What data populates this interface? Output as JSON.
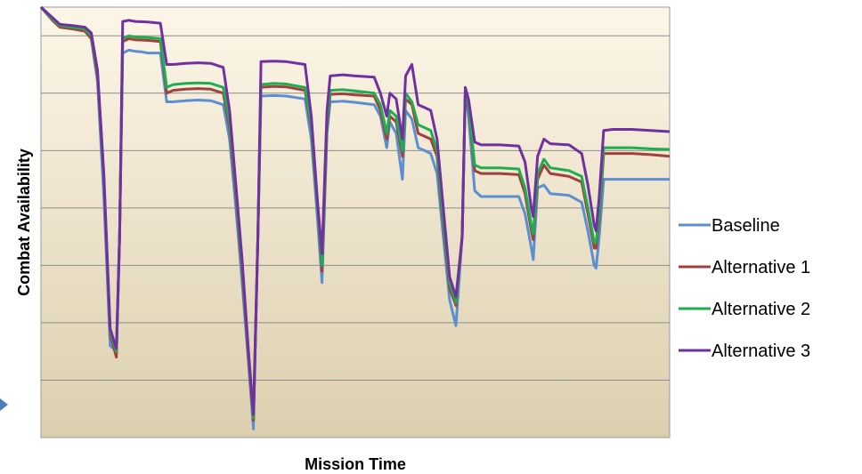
{
  "chart_data": {
    "type": "line",
    "title": "",
    "xlabel": "Mission Time",
    "ylabel": "Combat Availability",
    "xlim": [
      0,
      100
    ],
    "ylim": [
      0,
      7.5
    ],
    "grid": true,
    "legend_position": "right",
    "tick_labels_shown": false,
    "series": [
      {
        "name": "Baseline",
        "color": "#5B8FD0",
        "points": [
          [
            0,
            7.5
          ],
          [
            2,
            7.25
          ],
          [
            3,
            7.17
          ],
          [
            5,
            7.13
          ],
          [
            7,
            7.1
          ],
          [
            8,
            6.95
          ],
          [
            9,
            6.2
          ],
          [
            10,
            4.2
          ],
          [
            11,
            1.6
          ],
          [
            12,
            1.5
          ],
          [
            12.5,
            3.5
          ],
          [
            13,
            6.7
          ],
          [
            14,
            6.75
          ],
          [
            15,
            6.73
          ],
          [
            16,
            6.72
          ],
          [
            17,
            6.7
          ],
          [
            19,
            6.7
          ],
          [
            20,
            5.85
          ],
          [
            21,
            5.85
          ],
          [
            23,
            5.87
          ],
          [
            25,
            5.88
          ],
          [
            27,
            5.87
          ],
          [
            29,
            5.8
          ],
          [
            30,
            5.2
          ],
          [
            31,
            4.0
          ],
          [
            32,
            2.7
          ],
          [
            33,
            1.3
          ],
          [
            33.8,
            0.15
          ],
          [
            34.5,
            3.5
          ],
          [
            35,
            5.95
          ],
          [
            37,
            5.96
          ],
          [
            39,
            5.95
          ],
          [
            42,
            5.9
          ],
          [
            43,
            5.2
          ],
          [
            44,
            3.8
          ],
          [
            44.7,
            2.7
          ],
          [
            45.5,
            5.3
          ],
          [
            46,
            5.85
          ],
          [
            48,
            5.86
          ],
          [
            50,
            5.84
          ],
          [
            53,
            5.8
          ],
          [
            54,
            5.6
          ],
          [
            55,
            5.05
          ],
          [
            55.5,
            5.5
          ],
          [
            56.5,
            5.3
          ],
          [
            57.5,
            4.5
          ],
          [
            58,
            5.7
          ],
          [
            59,
            5.55
          ],
          [
            60,
            5.05
          ],
          [
            61,
            5.0
          ],
          [
            62,
            4.95
          ],
          [
            63,
            4.6
          ],
          [
            64,
            3.5
          ],
          [
            65,
            2.4
          ],
          [
            66,
            1.95
          ],
          [
            67,
            3.5
          ],
          [
            67.5,
            6.0
          ],
          [
            68,
            5.6
          ],
          [
            69,
            4.3
          ],
          [
            70,
            4.2
          ],
          [
            73,
            4.2
          ],
          [
            76,
            4.2
          ],
          [
            77,
            3.9
          ],
          [
            78,
            3.3
          ],
          [
            78.3,
            3.1
          ],
          [
            79,
            4.35
          ],
          [
            80,
            4.4
          ],
          [
            81,
            4.25
          ],
          [
            84,
            4.22
          ],
          [
            86,
            4.1
          ],
          [
            87,
            3.6
          ],
          [
            88,
            3.0
          ],
          [
            88.3,
            2.95
          ],
          [
            88.8,
            3.5
          ],
          [
            89.5,
            4.5
          ],
          [
            91,
            4.5
          ],
          [
            94,
            4.5
          ],
          [
            97,
            4.5
          ],
          [
            100,
            4.5
          ]
        ]
      },
      {
        "name": "Alternative 1",
        "color": "#A0413C",
        "points": [
          [
            0,
            7.5
          ],
          [
            2,
            7.25
          ],
          [
            3,
            7.15
          ],
          [
            5,
            7.12
          ],
          [
            7,
            7.08
          ],
          [
            8,
            6.95
          ],
          [
            9,
            6.3
          ],
          [
            10,
            4.5
          ],
          [
            11,
            1.8
          ],
          [
            12,
            1.4
          ],
          [
            12.5,
            3.5
          ],
          [
            13,
            6.9
          ],
          [
            14,
            6.95
          ],
          [
            15,
            6.93
          ],
          [
            17,
            6.92
          ],
          [
            19,
            6.9
          ],
          [
            20,
            6.0
          ],
          [
            21,
            6.05
          ],
          [
            23,
            6.07
          ],
          [
            25,
            6.08
          ],
          [
            27,
            6.07
          ],
          [
            29,
            6.0
          ],
          [
            30,
            5.4
          ],
          [
            31,
            4.2
          ],
          [
            32,
            2.9
          ],
          [
            33,
            1.4
          ],
          [
            33.8,
            0.3
          ],
          [
            34.5,
            3.5
          ],
          [
            35,
            6.1
          ],
          [
            37,
            6.12
          ],
          [
            39,
            6.11
          ],
          [
            42,
            6.05
          ],
          [
            43,
            5.4
          ],
          [
            44,
            4.0
          ],
          [
            44.7,
            2.9
          ],
          [
            45.5,
            5.4
          ],
          [
            46,
            5.98
          ],
          [
            48,
            5.99
          ],
          [
            50,
            5.97
          ],
          [
            53,
            5.95
          ],
          [
            54,
            5.7
          ],
          [
            55,
            5.2
          ],
          [
            55.5,
            5.6
          ],
          [
            56.5,
            5.5
          ],
          [
            57.5,
            4.9
          ],
          [
            58,
            5.9
          ],
          [
            59,
            5.8
          ],
          [
            60,
            5.3
          ],
          [
            61,
            5.25
          ],
          [
            62,
            5.2
          ],
          [
            63,
            4.9
          ],
          [
            64,
            3.7
          ],
          [
            65,
            2.6
          ],
          [
            66,
            2.3
          ],
          [
            67,
            3.5
          ],
          [
            67.5,
            6.0
          ],
          [
            68,
            5.75
          ],
          [
            69,
            4.65
          ],
          [
            70,
            4.6
          ],
          [
            73,
            4.6
          ],
          [
            76,
            4.58
          ],
          [
            77,
            4.25
          ],
          [
            78,
            3.6
          ],
          [
            78.3,
            3.45
          ],
          [
            79,
            4.5
          ],
          [
            80,
            4.75
          ],
          [
            81,
            4.6
          ],
          [
            84,
            4.55
          ],
          [
            86,
            4.45
          ],
          [
            87,
            3.9
          ],
          [
            88,
            3.3
          ],
          [
            88.3,
            3.3
          ],
          [
            88.8,
            3.8
          ],
          [
            89.5,
            4.95
          ],
          [
            91,
            4.95
          ],
          [
            94,
            4.95
          ],
          [
            97,
            4.93
          ],
          [
            100,
            4.9
          ]
        ]
      },
      {
        "name": "Alternative 2",
        "color": "#1FAE4F",
        "points": [
          [
            0,
            7.5
          ],
          [
            2,
            7.27
          ],
          [
            3,
            7.18
          ],
          [
            5,
            7.15
          ],
          [
            7,
            7.12
          ],
          [
            8,
            7.0
          ],
          [
            9,
            6.35
          ],
          [
            10,
            4.55
          ],
          [
            11,
            1.85
          ],
          [
            12,
            1.5
          ],
          [
            12.5,
            3.5
          ],
          [
            13,
            6.95
          ],
          [
            14,
            7.0
          ],
          [
            15,
            6.98
          ],
          [
            17,
            6.97
          ],
          [
            19,
            6.95
          ],
          [
            20,
            6.1
          ],
          [
            21,
            6.15
          ],
          [
            23,
            6.17
          ],
          [
            25,
            6.18
          ],
          [
            27,
            6.17
          ],
          [
            29,
            6.1
          ],
          [
            30,
            5.5
          ],
          [
            31,
            4.3
          ],
          [
            32,
            3.0
          ],
          [
            33,
            1.5
          ],
          [
            33.8,
            0.35
          ],
          [
            34.5,
            3.5
          ],
          [
            35,
            6.15
          ],
          [
            37,
            6.17
          ],
          [
            39,
            6.16
          ],
          [
            42,
            6.1
          ],
          [
            43,
            5.45
          ],
          [
            44,
            4.05
          ],
          [
            44.7,
            3.0
          ],
          [
            45.5,
            5.5
          ],
          [
            46,
            6.05
          ],
          [
            48,
            6.06
          ],
          [
            50,
            6.04
          ],
          [
            53,
            6.0
          ],
          [
            54,
            5.8
          ],
          [
            55,
            5.3
          ],
          [
            55.5,
            5.7
          ],
          [
            56.5,
            5.6
          ],
          [
            57.5,
            5.0
          ],
          [
            58,
            6.0
          ],
          [
            59,
            5.85
          ],
          [
            60,
            5.45
          ],
          [
            61,
            5.4
          ],
          [
            62,
            5.35
          ],
          [
            63,
            5.0
          ],
          [
            64,
            3.8
          ],
          [
            65,
            2.7
          ],
          [
            66,
            2.35
          ],
          [
            67,
            3.5
          ],
          [
            67.5,
            6.0
          ],
          [
            68,
            5.8
          ],
          [
            69,
            4.75
          ],
          [
            70,
            4.7
          ],
          [
            73,
            4.7
          ],
          [
            76,
            4.68
          ],
          [
            77,
            4.35
          ],
          [
            78,
            3.7
          ],
          [
            78.3,
            3.55
          ],
          [
            79,
            4.6
          ],
          [
            80,
            4.85
          ],
          [
            81,
            4.7
          ],
          [
            84,
            4.65
          ],
          [
            86,
            4.55
          ],
          [
            87,
            4.0
          ],
          [
            88,
            3.4
          ],
          [
            88.3,
            3.4
          ],
          [
            88.8,
            3.9
          ],
          [
            89.5,
            5.05
          ],
          [
            91,
            5.05
          ],
          [
            94,
            5.05
          ],
          [
            97,
            5.03
          ],
          [
            100,
            5.02
          ]
        ]
      },
      {
        "name": "Alternative 3",
        "color": "#7030A0",
        "points": [
          [
            0,
            7.5
          ],
          [
            2,
            7.3
          ],
          [
            3,
            7.2
          ],
          [
            5,
            7.18
          ],
          [
            7,
            7.15
          ],
          [
            8,
            7.05
          ],
          [
            9,
            6.4
          ],
          [
            10,
            4.6
          ],
          [
            11,
            1.9
          ],
          [
            12,
            1.55
          ],
          [
            12.5,
            3.5
          ],
          [
            13,
            7.25
          ],
          [
            14,
            7.27
          ],
          [
            15,
            7.25
          ],
          [
            17,
            7.24
          ],
          [
            19,
            7.22
          ],
          [
            20,
            6.5
          ],
          [
            21,
            6.5
          ],
          [
            23,
            6.52
          ],
          [
            25,
            6.53
          ],
          [
            27,
            6.52
          ],
          [
            29,
            6.45
          ],
          [
            30,
            5.7
          ],
          [
            31,
            4.4
          ],
          [
            32,
            3.1
          ],
          [
            33,
            1.5
          ],
          [
            33.8,
            0.4
          ],
          [
            34.5,
            3.5
          ],
          [
            35,
            6.55
          ],
          [
            37,
            6.56
          ],
          [
            39,
            6.55
          ],
          [
            42,
            6.5
          ],
          [
            43,
            5.6
          ],
          [
            44,
            4.1
          ],
          [
            44.7,
            3.2
          ],
          [
            45.5,
            5.7
          ],
          [
            46,
            6.3
          ],
          [
            48,
            6.32
          ],
          [
            50,
            6.3
          ],
          [
            53,
            6.28
          ],
          [
            54,
            6.0
          ],
          [
            55,
            5.6
          ],
          [
            55.5,
            6.0
          ],
          [
            56.5,
            5.9
          ],
          [
            57.5,
            5.2
          ],
          [
            58,
            6.3
          ],
          [
            59,
            6.5
          ],
          [
            60,
            5.8
          ],
          [
            61,
            5.75
          ],
          [
            62,
            5.7
          ],
          [
            63,
            5.2
          ],
          [
            64,
            4.0
          ],
          [
            65,
            2.8
          ],
          [
            66,
            2.45
          ],
          [
            67,
            3.5
          ],
          [
            67.5,
            6.1
          ],
          [
            68,
            5.9
          ],
          [
            69,
            5.15
          ],
          [
            70,
            5.1
          ],
          [
            73,
            5.1
          ],
          [
            76,
            5.08
          ],
          [
            77,
            4.8
          ],
          [
            78,
            4.0
          ],
          [
            78.3,
            3.85
          ],
          [
            79,
            4.9
          ],
          [
            80,
            5.2
          ],
          [
            81,
            5.12
          ],
          [
            84,
            5.1
          ],
          [
            86,
            4.95
          ],
          [
            87,
            4.4
          ],
          [
            88,
            3.7
          ],
          [
            88.3,
            3.6
          ],
          [
            88.8,
            4.2
          ],
          [
            89.5,
            5.35
          ],
          [
            91,
            5.37
          ],
          [
            94,
            5.37
          ],
          [
            97,
            5.35
          ],
          [
            100,
            5.33
          ]
        ]
      }
    ]
  }
}
